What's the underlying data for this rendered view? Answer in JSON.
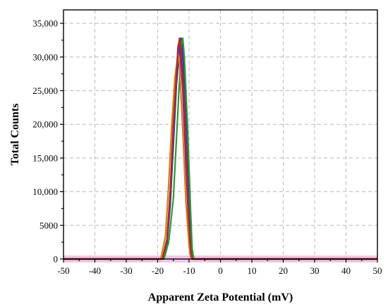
{
  "chart_data": {
    "type": "line",
    "title": "",
    "xlabel": "Apparent Zeta Potential (mV)",
    "ylabel": "Total Counts",
    "xlim": [
      -50,
      50
    ],
    "ylim": [
      0,
      37000
    ],
    "x_ticks": [
      -50,
      -40,
      -30,
      -20,
      -10,
      0,
      10,
      20,
      30,
      40,
      50
    ],
    "x_tick_labels": [
      "-50",
      "-40",
      "-30",
      "-20",
      "-10",
      "0",
      "10",
      "20",
      "30",
      "40",
      "50"
    ],
    "y_ticks": [
      0,
      5000,
      10000,
      15000,
      20000,
      25000,
      30000,
      35000
    ],
    "y_tick_labels": [
      "0",
      "5000",
      "10,000",
      "15,000",
      "20,000",
      "25,000",
      "30,000",
      "35,000"
    ],
    "grid": true,
    "legend": "none",
    "baseline_band_color": "#f2c6e6",
    "series": [
      {
        "color": "#1f3fd0",
        "points": [
          [
            -50,
            0
          ],
          [
            -18.5,
            0
          ],
          [
            -17,
            2500
          ],
          [
            -16,
            8000
          ],
          [
            -15,
            17000
          ],
          [
            -14,
            26000
          ],
          [
            -13,
            31500
          ],
          [
            -12.5,
            32800
          ],
          [
            -12,
            30500
          ],
          [
            -11,
            22000
          ],
          [
            -10,
            9000
          ],
          [
            -9.5,
            3000
          ],
          [
            -9,
            300
          ],
          [
            -8.5,
            0
          ],
          [
            50,
            0
          ]
        ]
      },
      {
        "color": "#2e9a2e",
        "points": [
          [
            -50,
            0
          ],
          [
            -18,
            0
          ],
          [
            -16.5,
            2500
          ],
          [
            -15,
            9000
          ],
          [
            -14,
            18000
          ],
          [
            -13,
            27000
          ],
          [
            -12.5,
            32000
          ],
          [
            -12,
            32800
          ],
          [
            -11.5,
            30000
          ],
          [
            -10.5,
            20000
          ],
          [
            -9.5,
            7000
          ],
          [
            -9,
            1500
          ],
          [
            -8.5,
            0
          ],
          [
            50,
            0
          ]
        ]
      },
      {
        "color": "#8a1fa0",
        "points": [
          [
            -50,
            0
          ],
          [
            -18.5,
            0
          ],
          [
            -17,
            3000
          ],
          [
            -16,
            10000
          ],
          [
            -15,
            20000
          ],
          [
            -14,
            28000
          ],
          [
            -13.5,
            31500
          ],
          [
            -13,
            32000
          ],
          [
            -12,
            25000
          ],
          [
            -11,
            14000
          ],
          [
            -10,
            4000
          ],
          [
            -9.5,
            800
          ],
          [
            -9,
            0
          ],
          [
            50,
            0
          ]
        ]
      },
      {
        "color": "#d2801a",
        "points": [
          [
            -50,
            0
          ],
          [
            -19,
            0
          ],
          [
            -17.5,
            3500
          ],
          [
            -16.5,
            11000
          ],
          [
            -15.5,
            20000
          ],
          [
            -14.5,
            27000
          ],
          [
            -13.5,
            30500
          ],
          [
            -13,
            28500
          ],
          [
            -12,
            19000
          ],
          [
            -11,
            8500
          ],
          [
            -10,
            2000
          ],
          [
            -9.5,
            300
          ],
          [
            -9,
            0
          ],
          [
            50,
            0
          ]
        ]
      },
      {
        "color": "#b02a1a",
        "points": [
          [
            -50,
            0
          ],
          [
            -18.5,
            0
          ],
          [
            -17,
            3000
          ],
          [
            -16,
            9500
          ],
          [
            -15,
            19000
          ],
          [
            -14,
            27500
          ],
          [
            -13.5,
            31500
          ],
          [
            -13,
            32800
          ],
          [
            -12.5,
            31000
          ],
          [
            -11.5,
            23000
          ],
          [
            -10.5,
            11000
          ],
          [
            -10,
            5000
          ],
          [
            -9.5,
            1200
          ],
          [
            -9,
            0
          ],
          [
            50,
            0
          ]
        ]
      }
    ]
  }
}
